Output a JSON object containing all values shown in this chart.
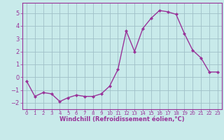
{
  "x": [
    0,
    1,
    2,
    3,
    4,
    5,
    6,
    7,
    8,
    9,
    10,
    11,
    12,
    13,
    14,
    15,
    16,
    17,
    18,
    19,
    20,
    21,
    22,
    23
  ],
  "y": [
    -0.3,
    -1.5,
    -1.2,
    -1.3,
    -1.9,
    -1.6,
    -1.4,
    -1.5,
    -1.5,
    -1.3,
    -0.7,
    0.6,
    3.6,
    2.0,
    3.8,
    4.6,
    5.2,
    5.1,
    4.9,
    3.4,
    2.1,
    1.5,
    0.4,
    0.4
  ],
  "line_color": "#993399",
  "marker": "D",
  "marker_size": 2,
  "bg_color": "#c8eaea",
  "grid_color": "#a0c0c8",
  "xlabel": "Windchill (Refroidissement éolien,°C)",
  "xlabel_color": "#993399",
  "tick_color": "#993399",
  "label_color": "#993399",
  "ylim": [
    -2.5,
    5.8
  ],
  "xlim": [
    -0.5,
    23.5
  ],
  "yticks": [
    -2,
    -1,
    0,
    1,
    2,
    3,
    4,
    5
  ],
  "xticks": [
    0,
    1,
    2,
    3,
    4,
    5,
    6,
    7,
    8,
    9,
    10,
    11,
    12,
    13,
    14,
    15,
    16,
    17,
    18,
    19,
    20,
    21,
    22,
    23
  ],
  "tick_fontsize": 5,
  "xlabel_fontsize": 6,
  "linewidth": 1.0
}
